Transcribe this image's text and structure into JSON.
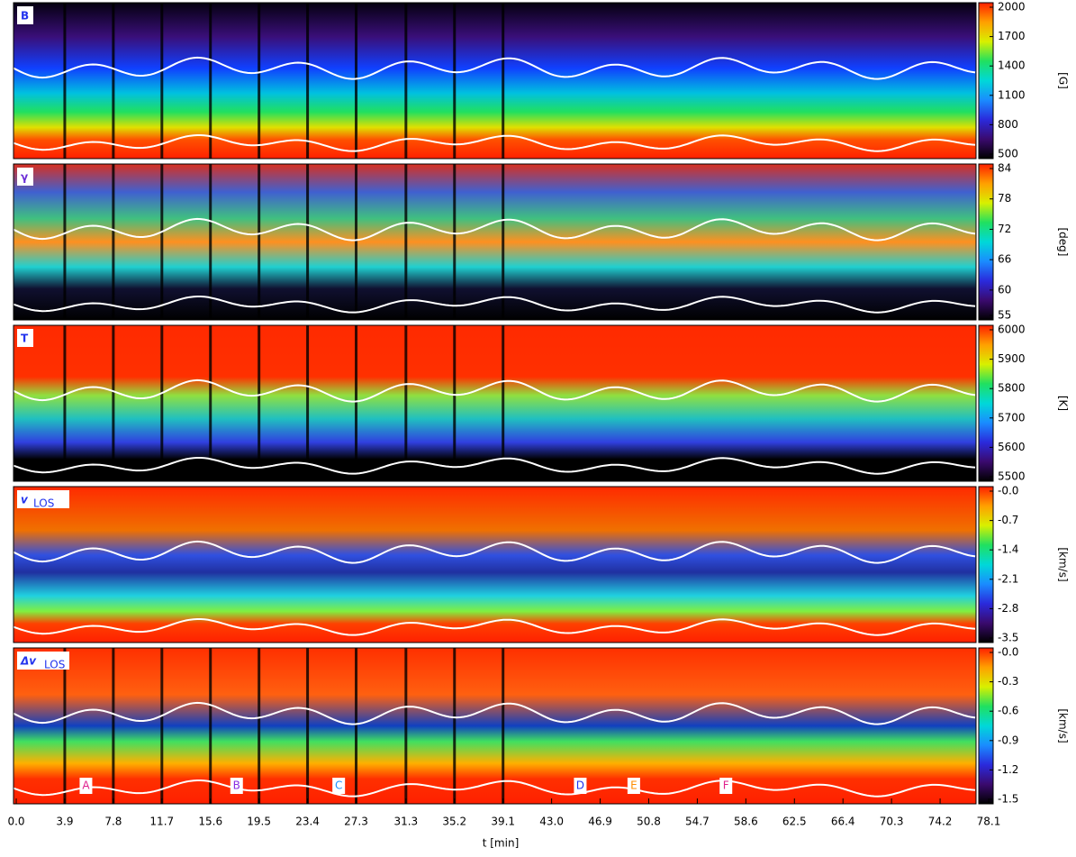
{
  "chart_data": [
    {
      "type": "heatmap",
      "label": "B",
      "label_color": "#2233ee",
      "unit": "[G]",
      "clim": [
        500,
        2000
      ],
      "cticks": [
        500,
        800,
        1100,
        1400,
        1700,
        2000
      ]
    },
    {
      "type": "heatmap",
      "label": "γ",
      "label_color": "#6a2bd6",
      "unit": "[deg]",
      "clim": [
        55,
        84
      ],
      "cticks": [
        55,
        60,
        66,
        72,
        78,
        84
      ]
    },
    {
      "type": "heatmap",
      "label": "T",
      "label_color": "#2233ee",
      "unit": "[K]",
      "clim": [
        5500,
        6000
      ],
      "cticks": [
        5500,
        5600,
        5700,
        5800,
        5900,
        6000
      ]
    },
    {
      "type": "heatmap",
      "label": "v",
      "label_sub": "LOS",
      "label_color": "#2233ee",
      "unit": "[km/s]",
      "clim": [
        -3.5,
        0
      ],
      "cticks": [
        -3.5,
        -2.8,
        -2.1,
        -1.4,
        -0.7,
        {
          "value": 0,
          "label": "-0.0"
        }
      ]
    },
    {
      "type": "heatmap",
      "label": "Δv",
      "label_sub": "LOS",
      "label_color": "#2233ee",
      "unit": "[km/s]",
      "clim": [
        -1.5,
        0
      ],
      "cticks": [
        -1.5,
        -1.2,
        -0.9,
        -0.6,
        -0.3,
        {
          "value": 0,
          "label": "-0.0"
        }
      ],
      "xlabel": "t [min]",
      "xlim": [
        0,
        78.1
      ],
      "xticks": [
        {
          "value": 0,
          "label": "0.0"
        },
        3.9,
        7.8,
        11.7,
        15.6,
        19.5,
        23.4,
        27.3,
        31.3,
        35.2,
        39.1,
        {
          "value": 43,
          "label": "43.0"
        },
        46.9,
        50.8,
        54.7,
        58.6,
        62.5,
        66.4,
        70.3,
        74.2,
        78.1
      ],
      "annotations": [
        {
          "text": "A",
          "x": 5.6,
          "color": "#e0208c"
        },
        {
          "text": "B",
          "x": 17.7,
          "color": "#8a2be2"
        },
        {
          "text": "C",
          "x": 25.9,
          "color": "#1e90ff"
        },
        {
          "text": "D",
          "x": 45.3,
          "color": "#2233ee"
        },
        {
          "text": "E",
          "x": 49.6,
          "color": "#ff8c00"
        },
        {
          "text": "F",
          "x": 57.0,
          "color": "#e0208c"
        }
      ]
    }
  ],
  "colormap": [
    "#000000",
    "#3a0a6e",
    "#2a2adc",
    "#1a8cff",
    "#00d8d8",
    "#20e060",
    "#d8f000",
    "#ffa000",
    "#ff2000"
  ]
}
